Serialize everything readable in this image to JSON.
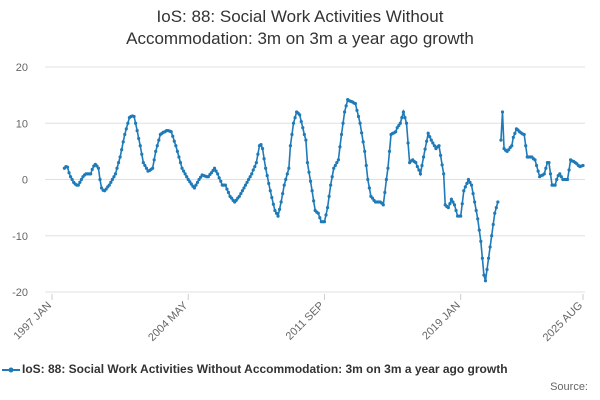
{
  "chart_data": {
    "type": "line",
    "title": "IoS: 88: Social Work Activities Without Accommodation: 3m on 3m a year ago growth",
    "source_label": "Source:",
    "categories": [
      "1997 JAN",
      null,
      null,
      null,
      null,
      null,
      null,
      null,
      null,
      null,
      null,
      null,
      null,
      null,
      null,
      null,
      null,
      null,
      null,
      null,
      null,
      null,
      null,
      null,
      null,
      null,
      null,
      null,
      null,
      null,
      null,
      null,
      null,
      null,
      null,
      null,
      null,
      null,
      null,
      null,
      null,
      null,
      null,
      null,
      null,
      null,
      null,
      null,
      null,
      null,
      null,
      null,
      null,
      null,
      null,
      null,
      null,
      null,
      null,
      null,
      null,
      null,
      null,
      null,
      null,
      null,
      null,
      null,
      null,
      null,
      null,
      null,
      null,
      null,
      null,
      null,
      null,
      null,
      null,
      null,
      null,
      null,
      null,
      null,
      null,
      null,
      null,
      null,
      "2004 MAY",
      null,
      null,
      null,
      null,
      null,
      null,
      null,
      null,
      null,
      null,
      null,
      null,
      null,
      null,
      null,
      null,
      null,
      null,
      null,
      null,
      null,
      null,
      null,
      null,
      null,
      null,
      null,
      null,
      null,
      null,
      null,
      null,
      null,
      null,
      null,
      null,
      null,
      null,
      null,
      null,
      null,
      null,
      null,
      null,
      null,
      null,
      null,
      null,
      null,
      null,
      null,
      null,
      null,
      null,
      null,
      null,
      null,
      null,
      null,
      null,
      null,
      null,
      null,
      null,
      null,
      null,
      null,
      null,
      null,
      null,
      null,
      null,
      null,
      null,
      null,
      null,
      null,
      null,
      null,
      null,
      null,
      null,
      null,
      null,
      null,
      null,
      null,
      "2011 SEP",
      null,
      null,
      null,
      null,
      null,
      null,
      null,
      null,
      null,
      null,
      null,
      null,
      null,
      null,
      null,
      null,
      null,
      null,
      null,
      null,
      null,
      null,
      null,
      null,
      null,
      null,
      null,
      null,
      null,
      null,
      null,
      null,
      null,
      null,
      null,
      null,
      null,
      null,
      null,
      null,
      null,
      null,
      null,
      null,
      null,
      null,
      null,
      null,
      null,
      null,
      null,
      null,
      null,
      null,
      null,
      null,
      null,
      null,
      null,
      null,
      null,
      null,
      null,
      null,
      null,
      null,
      null,
      null,
      null,
      null,
      null,
      null,
      null,
      null,
      null,
      null,
      null,
      null,
      null,
      null,
      null,
      null,
      null,
      null,
      null,
      null,
      null,
      "2019 JAN",
      null,
      null,
      null,
      null,
      null,
      null,
      null,
      null,
      null,
      null,
      null,
      null,
      null,
      null,
      null,
      null,
      null,
      null,
      null,
      null,
      null,
      null,
      null,
      null,
      null,
      null,
      null,
      null,
      null,
      null,
      null,
      null,
      null,
      null,
      null,
      null,
      null,
      null,
      null,
      null,
      null,
      null,
      null,
      null,
      null,
      null,
      null,
      null,
      null,
      null,
      null,
      null,
      null,
      null,
      null,
      null,
      null,
      null,
      null,
      null,
      null,
      null,
      null,
      null,
      null,
      null,
      null,
      null,
      null,
      null,
      null,
      null,
      null,
      null,
      null,
      null,
      null,
      null,
      "2025 AUG"
    ],
    "series": [
      {
        "name": "IoS: 88: Social Work Activities Without Accommodation: 3m on 3m a year ago growth",
        "color": "#1f7ab8",
        "values": [
          null,
          null,
          null,
          null,
          null,
          null,
          null,
          null,
          2,
          2.3,
          2.2,
          1.2,
          0.5,
          0,
          -0.5,
          -0.8,
          -1,
          -1,
          -0.5,
          0,
          0.5,
          0.8,
          1,
          1,
          1,
          1,
          1.8,
          2.4,
          2.7,
          2.4,
          2,
          0,
          -1.5,
          -1.9,
          -2,
          -1.7,
          -1.3,
          -1,
          -0.5,
          0,
          0.5,
          1,
          2,
          3,
          4,
          5.3,
          6.7,
          8,
          9,
          10,
          11,
          11.2,
          11.3,
          11.2,
          10,
          8.7,
          7.3,
          6,
          4.5,
          3,
          2.5,
          2,
          1.5,
          1.6,
          1.8,
          2,
          3.5,
          5,
          6,
          7,
          8,
          8.2,
          8.4,
          8.5,
          8.7,
          8.7,
          8.6,
          8.5,
          7.7,
          6.8,
          6,
          5,
          4,
          3,
          2,
          1.5,
          1,
          0.5,
          0,
          -0.4,
          -0.8,
          -1.2,
          -1.5,
          -1,
          -0.5,
          0,
          0.4,
          0.8,
          0.7,
          0.6,
          0.5,
          0.5,
          0.9,
          1.2,
          1.6,
          2,
          1.5,
          1,
          0.3,
          -0.3,
          -1,
          -1,
          -1,
          -1.7,
          -2.3,
          -3,
          -3.3,
          -3.7,
          -4,
          -3.7,
          -3.3,
          -3,
          -2.5,
          -2,
          -1.5,
          -1,
          -0.5,
          0,
          0.5,
          1,
          1.7,
          2.3,
          3,
          4.5,
          6,
          6.2,
          5.5,
          3.7,
          2,
          0.7,
          -0.7,
          -2,
          -3.2,
          -4.4,
          -5.5,
          -6,
          -6.5,
          -5.3,
          -4,
          -2.5,
          -1,
          0,
          1,
          2,
          6,
          8,
          10,
          11,
          12,
          11.8,
          11.5,
          10.3,
          9.2,
          8,
          7,
          3,
          1.3,
          -0.3,
          -2,
          -3.8,
          -5.5,
          -5.8,
          -6,
          -6.8,
          -7.5,
          -7.5,
          -7.5,
          -6.3,
          -5,
          -3,
          -1,
          0.5,
          2,
          2.5,
          3,
          3.5,
          5.8,
          8,
          10,
          12,
          13.1,
          14.2,
          14,
          13.9,
          13.8,
          13.6,
          13.5,
          12.3,
          11.2,
          10,
          8.3,
          6.7,
          5,
          2.5,
          0,
          -1.5,
          -3,
          -3.3,
          -3.7,
          -4,
          -4,
          -4,
          -4,
          -4.2,
          -4.5,
          -2.3,
          0,
          2,
          5,
          8,
          8.2,
          8.3,
          8.5,
          9.2,
          9.6,
          10,
          11,
          12,
          11,
          10,
          6.5,
          3,
          3.3,
          3.5,
          3.2,
          3,
          2.3,
          1.7,
          1,
          2.5,
          4,
          5.4,
          6.8,
          8.2,
          7.6,
          7,
          6.5,
          6,
          5.5,
          5.8,
          6,
          4.3,
          2.6,
          1,
          -4.5,
          -4.8,
          -5,
          -4.3,
          -3.5,
          -4,
          -4.5,
          -5.5,
          -6.5,
          -6.5,
          -6.5,
          -4.3,
          -2,
          -1.3,
          -0.7,
          0,
          -0.5,
          -1,
          -2.5,
          -4,
          -5.5,
          -7,
          -9,
          -11,
          -14,
          -17,
          -18,
          -16,
          -14,
          -12,
          -10,
          -8,
          -6,
          -5,
          -4,
          null,
          7,
          12,
          5.5,
          5.2,
          5,
          5.3,
          5.7,
          6,
          7.5,
          8.2,
          9,
          8.8,
          8.5,
          8.3,
          8.1,
          8,
          6,
          4,
          4,
          4,
          4,
          3.7,
          3.5,
          2.5,
          1.5,
          0.5,
          0.7,
          0.8,
          1,
          2,
          3,
          3,
          1,
          -1,
          -1,
          -1,
          0,
          0.7,
          1,
          0.5,
          0,
          0,
          0,
          0,
          1.7,
          3.5,
          3.3,
          3.2,
          3,
          2.8,
          2.5,
          2.3,
          2.4,
          2.5
        ]
      }
    ],
    "ylim": [
      -20,
      20
    ],
    "yticks": [
      -20,
      -10,
      0,
      10,
      20
    ],
    "grid": true,
    "legend": "bottom"
  }
}
